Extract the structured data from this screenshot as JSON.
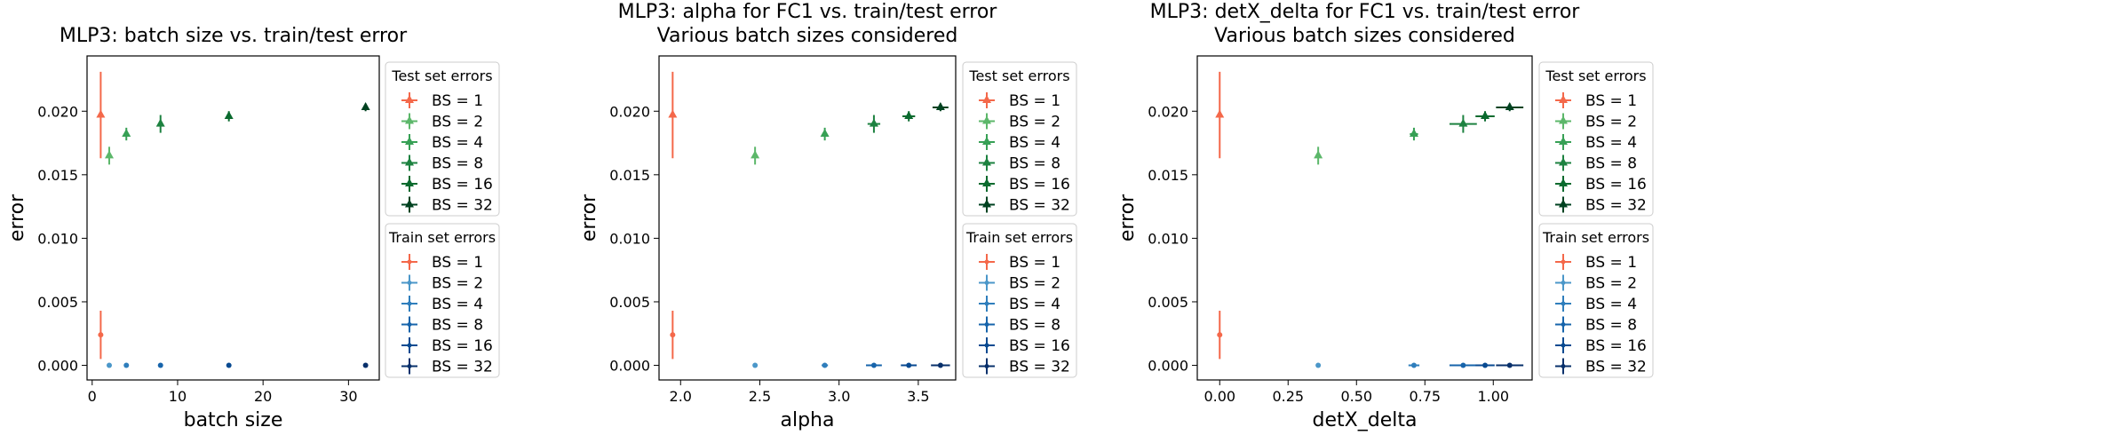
{
  "chart_data": [
    {
      "type": "scatter",
      "title": "MLP3: batch size vs. train/test error",
      "xlabel": "batch size",
      "ylabel": "error",
      "xlim": [
        -0.6,
        33.6
      ],
      "ylim": [
        -0.00115,
        0.02435
      ],
      "xticks": [
        0,
        10,
        20,
        30
      ],
      "xtick_labels": [
        "0",
        "10",
        "20",
        "30"
      ],
      "yticks": [
        0,
        0.005,
        0.01,
        0.015,
        0.02
      ],
      "ytick_labels": [
        "0.000",
        "0.005",
        "0.010",
        "0.015",
        "0.020"
      ],
      "grid": false,
      "test_legend_title": "Test set errors",
      "train_legend_title": "Train set errors",
      "series": [
        {
          "name": "BS = 1",
          "set": "test",
          "color": "#f4684a",
          "x": 1,
          "xerr": 0,
          "y": 0.0197,
          "yerr": 0.0034
        },
        {
          "name": "BS = 2",
          "set": "test",
          "color": "#5cb76a",
          "x": 2,
          "xerr": 0,
          "y": 0.0165,
          "yerr": 0.0007
        },
        {
          "name": "BS = 4",
          "set": "test",
          "color": "#37a055",
          "x": 4,
          "xerr": 0,
          "y": 0.0182,
          "yerr": 0.0005
        },
        {
          "name": "BS = 8",
          "set": "test",
          "color": "#1d8240",
          "x": 8,
          "xerr": 0,
          "y": 0.019,
          "yerr": 0.0007
        },
        {
          "name": "BS = 16",
          "set": "test",
          "color": "#0a6a2e",
          "x": 16,
          "xerr": 0,
          "y": 0.0196,
          "yerr": 0.0004
        },
        {
          "name": "BS = 32",
          "set": "test",
          "color": "#004220",
          "x": 32,
          "xerr": 0,
          "y": 0.0203,
          "yerr": 0.0003
        },
        {
          "name": "BS = 1",
          "set": "train",
          "color": "#f4684a",
          "x": 1,
          "xerr": 0,
          "y": 0.0024,
          "yerr": 0.0019
        },
        {
          "name": "BS = 2",
          "set": "train",
          "color": "#4b97c9",
          "x": 2,
          "xerr": 0,
          "y": 0.0,
          "yerr": 0
        },
        {
          "name": "BS = 4",
          "set": "train",
          "color": "#2f7ebc",
          "x": 4,
          "xerr": 0,
          "y": 0.0,
          "yerr": 0
        },
        {
          "name": "BS = 8",
          "set": "train",
          "color": "#1764ab",
          "x": 8,
          "xerr": 0,
          "y": 0.0,
          "yerr": 0
        },
        {
          "name": "BS = 16",
          "set": "train",
          "color": "#084a91",
          "x": 16,
          "xerr": 0,
          "y": 0.0,
          "yerr": 0
        },
        {
          "name": "BS = 32",
          "set": "train",
          "color": "#08306b",
          "x": 32,
          "xerr": 0,
          "y": 0.0,
          "yerr": 0
        }
      ]
    },
    {
      "type": "scatter",
      "title": "MLP3: alpha for FC1 vs. train/test error",
      "subtitle": "Various batch sizes considered",
      "xlabel": "alpha",
      "ylabel": "error",
      "xlim": [
        1.864,
        3.736
      ],
      "ylim": [
        -0.00115,
        0.02435
      ],
      "xticks": [
        2.0,
        2.5,
        3.0,
        3.5
      ],
      "xtick_labels": [
        "2.0",
        "2.5",
        "3.0",
        "3.5"
      ],
      "yticks": [
        0,
        0.005,
        0.01,
        0.015,
        0.02
      ],
      "ytick_labels": [
        "0.000",
        "0.005",
        "0.010",
        "0.015",
        "0.020"
      ],
      "grid": false,
      "test_legend_title": "Test set errors",
      "train_legend_title": "Train set errors",
      "series": [
        {
          "name": "BS = 1",
          "set": "test",
          "color": "#f4684a",
          "x": 1.95,
          "xerr": 0.01,
          "y": 0.0197,
          "yerr": 0.0034
        },
        {
          "name": "BS = 2",
          "set": "test",
          "color": "#5cb76a",
          "x": 2.47,
          "xerr": 0.01,
          "y": 0.0165,
          "yerr": 0.0007
        },
        {
          "name": "BS = 4",
          "set": "test",
          "color": "#37a055",
          "x": 2.91,
          "xerr": 0.01,
          "y": 0.0182,
          "yerr": 0.0005
        },
        {
          "name": "BS = 8",
          "set": "test",
          "color": "#1d8240",
          "x": 3.22,
          "xerr": 0.04,
          "y": 0.019,
          "yerr": 0.0007
        },
        {
          "name": "BS = 16",
          "set": "test",
          "color": "#0a6a2e",
          "x": 3.44,
          "xerr": 0.04,
          "y": 0.0196,
          "yerr": 0.0004
        },
        {
          "name": "BS = 32",
          "set": "test",
          "color": "#004220",
          "x": 3.64,
          "xerr": 0.05,
          "y": 0.0203,
          "yerr": 0.0003
        },
        {
          "name": "BS = 1",
          "set": "train",
          "color": "#f4684a",
          "x": 1.95,
          "xerr": 0.01,
          "y": 0.0024,
          "yerr": 0.0019
        },
        {
          "name": "BS = 2",
          "set": "train",
          "color": "#4b97c9",
          "x": 2.47,
          "xerr": 0.01,
          "y": 0.0,
          "yerr": 0
        },
        {
          "name": "BS = 4",
          "set": "train",
          "color": "#2f7ebc",
          "x": 2.91,
          "xerr": 0.02,
          "y": 0.0,
          "yerr": 0
        },
        {
          "name": "BS = 8",
          "set": "train",
          "color": "#1764ab",
          "x": 3.22,
          "xerr": 0.05,
          "y": 0.0,
          "yerr": 0
        },
        {
          "name": "BS = 16",
          "set": "train",
          "color": "#084a91",
          "x": 3.44,
          "xerr": 0.05,
          "y": 0.0,
          "yerr": 0
        },
        {
          "name": "BS = 32",
          "set": "train",
          "color": "#08306b",
          "x": 3.64,
          "xerr": 0.06,
          "y": 0.0,
          "yerr": 0
        }
      ]
    },
    {
      "type": "scatter",
      "title": "MLP3: detX_delta for FC1 vs. train/test error",
      "subtitle": "Various batch sizes considered",
      "xlabel": "detX_delta",
      "ylabel": "error",
      "xlim": [
        -0.082,
        1.142
      ],
      "ylim": [
        -0.00115,
        0.02435
      ],
      "xticks": [
        0,
        0.25,
        0.5,
        0.75,
        1.0
      ],
      "xtick_labels": [
        "0.00",
        "0.25",
        "0.50",
        "0.75",
        "1.00"
      ],
      "yticks": [
        0,
        0.005,
        0.01,
        0.015,
        0.02
      ],
      "ytick_labels": [
        "0.000",
        "0.005",
        "0.010",
        "0.015",
        "0.020"
      ],
      "grid": false,
      "test_legend_title": "Test set errors",
      "train_legend_title": "Train set errors",
      "series": [
        {
          "name": "BS = 1",
          "set": "test",
          "color": "#f4684a",
          "x": 0.0,
          "xerr": 0.0,
          "y": 0.0197,
          "yerr": 0.0034
        },
        {
          "name": "BS = 2",
          "set": "test",
          "color": "#5cb76a",
          "x": 0.36,
          "xerr": 0.006,
          "y": 0.0165,
          "yerr": 0.0007
        },
        {
          "name": "BS = 4",
          "set": "test",
          "color": "#37a055",
          "x": 0.71,
          "xerr": 0.015,
          "y": 0.0182,
          "yerr": 0.0005
        },
        {
          "name": "BS = 8",
          "set": "test",
          "color": "#1d8240",
          "x": 0.89,
          "xerr": 0.05,
          "y": 0.019,
          "yerr": 0.0007
        },
        {
          "name": "BS = 16",
          "set": "test",
          "color": "#0a6a2e",
          "x": 0.97,
          "xerr": 0.035,
          "y": 0.0196,
          "yerr": 0.0004
        },
        {
          "name": "BS = 32",
          "set": "test",
          "color": "#004220",
          "x": 1.06,
          "xerr": 0.05,
          "y": 0.0203,
          "yerr": 0.0003
        },
        {
          "name": "BS = 1",
          "set": "train",
          "color": "#f4684a",
          "x": 0.0,
          "xerr": 0.0,
          "y": 0.0024,
          "yerr": 0.0019
        },
        {
          "name": "BS = 2",
          "set": "train",
          "color": "#4b97c9",
          "x": 0.36,
          "xerr": 0.006,
          "y": 0.0,
          "yerr": 0
        },
        {
          "name": "BS = 4",
          "set": "train",
          "color": "#2f7ebc",
          "x": 0.71,
          "xerr": 0.02,
          "y": 0.0,
          "yerr": 0
        },
        {
          "name": "BS = 8",
          "set": "train",
          "color": "#1764ab",
          "x": 0.89,
          "xerr": 0.05,
          "y": 0.0,
          "yerr": 0
        },
        {
          "name": "BS = 16",
          "set": "train",
          "color": "#084a91",
          "x": 0.97,
          "xerr": 0.035,
          "y": 0.0,
          "yerr": 0
        },
        {
          "name": "BS = 32",
          "set": "train",
          "color": "#08306b",
          "x": 1.06,
          "xerr": 0.05,
          "y": 0.0,
          "yerr": 0
        }
      ]
    }
  ]
}
